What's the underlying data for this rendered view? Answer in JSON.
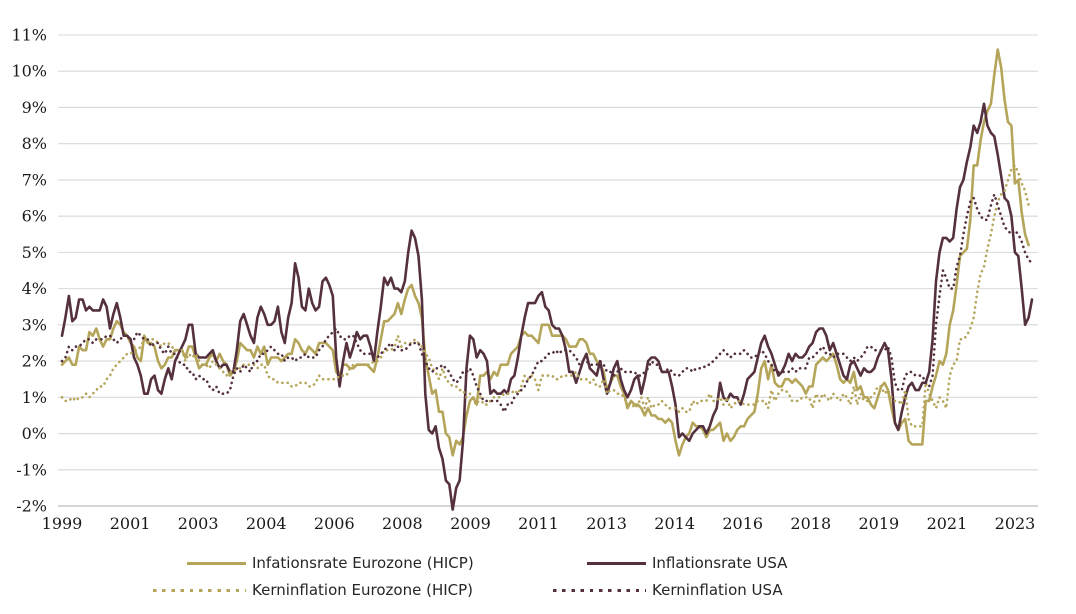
{
  "figure": {
    "background": "#ffffff",
    "gridline_color": "#d9d9d9",
    "axis_line_color": "#c9c9c9",
    "tick_text_color": "#1a1a1a",
    "legend_text_color": "#262626"
  },
  "chart_data": {
    "type": "line",
    "title": "",
    "xlabel": "",
    "ylabel": "",
    "frequency": "monthly",
    "grid": "horizontal",
    "legend_position": "bottom",
    "ylim": [
      -2,
      11
    ],
    "y_tick_values": [
      11,
      10,
      9,
      8,
      7,
      6,
      5,
      4,
      3,
      2,
      1,
      0,
      -1,
      -2
    ],
    "y_tick_labels": [
      "11%",
      "10%",
      "9%",
      "8%",
      "7%",
      "6%",
      "5%",
      "4%",
      "3%",
      "2%",
      "1%",
      "0%",
      "-1%",
      "-2%"
    ],
    "x_tick_labels": [
      "1999",
      "2001",
      "2003",
      "2004",
      "2006",
      "2008",
      "2009",
      "2011",
      "2013",
      "2014",
      "2016",
      "2018",
      "2019",
      "2021",
      "2023"
    ],
    "x_points_total": 284,
    "series": [
      {
        "name": "Infationsrate Eurozone (HICP)",
        "style": "solid",
        "color": "#b5a55a",
        "values": [
          1.9,
          2.0,
          2.1,
          1.9,
          1.9,
          2.4,
          2.3,
          2.3,
          2.8,
          2.7,
          2.9,
          2.6,
          2.4,
          2.6,
          2.6,
          2.9,
          3.1,
          3.0,
          2.8,
          2.7,
          2.5,
          2.4,
          2.1,
          2.0,
          2.7,
          2.5,
          2.5,
          2.4,
          2.0,
          1.8,
          1.9,
          2.1,
          2.1,
          2.3,
          2.3,
          2.3,
          2.1,
          2.4,
          2.4,
          2.1,
          1.8,
          1.9,
          1.9,
          2.1,
          2.2,
          2.0,
          2.2,
          2.0,
          1.9,
          1.6,
          1.7,
          2.0,
          2.5,
          2.4,
          2.3,
          2.3,
          2.1,
          2.4,
          2.2,
          2.4,
          1.9,
          2.1,
          2.1,
          2.1,
          2.0,
          2.1,
          2.2,
          2.2,
          2.6,
          2.5,
          2.3,
          2.2,
          2.4,
          2.3,
          2.2,
          2.5,
          2.5,
          2.5,
          2.4,
          2.3,
          1.7,
          1.6,
          1.9,
          1.9,
          1.8,
          1.8,
          1.9,
          1.9,
          1.9,
          1.9,
          1.8,
          1.7,
          2.1,
          2.6,
          3.1,
          3.1,
          3.2,
          3.3,
          3.6,
          3.3,
          3.7,
          4.0,
          4.1,
          3.8,
          3.6,
          3.2,
          2.1,
          1.6,
          1.1,
          1.2,
          0.6,
          0.6,
          0.0,
          -0.1,
          -0.6,
          -0.2,
          -0.3,
          -0.1,
          0.5,
          0.9,
          1.0,
          0.8,
          1.6,
          1.6,
          1.7,
          1.5,
          1.7,
          1.6,
          1.9,
          1.9,
          1.9,
          2.2,
          2.3,
          2.4,
          2.7,
          2.8,
          2.7,
          2.7,
          2.6,
          2.5,
          3.0,
          3.0,
          3.0,
          2.7,
          2.7,
          2.7,
          2.7,
          2.6,
          2.4,
          2.4,
          2.4,
          2.6,
          2.6,
          2.5,
          2.2,
          2.2,
          2.0,
          1.9,
          1.7,
          1.2,
          1.4,
          1.6,
          1.6,
          1.3,
          1.1,
          0.7,
          0.9,
          0.8,
          0.8,
          0.7,
          0.5,
          0.7,
          0.5,
          0.5,
          0.4,
          0.4,
          0.3,
          0.4,
          0.3,
          -0.2,
          -0.6,
          -0.3,
          -0.1,
          0.0,
          0.3,
          0.2,
          0.2,
          0.1,
          -0.1,
          0.1,
          0.1,
          0.2,
          0.3,
          -0.2,
          0.0,
          -0.2,
          -0.1,
          0.1,
          0.2,
          0.2,
          0.4,
          0.5,
          0.6,
          1.1,
          1.8,
          2.0,
          1.5,
          1.9,
          1.4,
          1.3,
          1.3,
          1.5,
          1.5,
          1.4,
          1.5,
          1.4,
          1.3,
          1.1,
          1.3,
          1.3,
          1.9,
          2.0,
          2.1,
          2.0,
          2.1,
          2.2,
          1.9,
          1.5,
          1.4,
          1.5,
          1.4,
          1.7,
          1.2,
          1.3,
          1.0,
          1.0,
          0.8,
          0.7,
          1.0,
          1.3,
          1.4,
          1.2,
          0.7,
          0.3,
          0.1,
          0.3,
          0.4,
          -0.2,
          -0.3,
          -0.3,
          -0.3,
          -0.3,
          0.9,
          0.9,
          1.3,
          1.6,
          2.0,
          1.9,
          2.2,
          3.0,
          3.4,
          4.1,
          4.9,
          5.0,
          5.1,
          5.9,
          7.4,
          7.4,
          8.1,
          8.6,
          8.9,
          9.1,
          9.9,
          10.6,
          10.1,
          9.2,
          8.6,
          8.5,
          6.9,
          7.0,
          6.1,
          5.5,
          5.2
        ]
      },
      {
        "name": "Inflationsrate USA",
        "style": "solid",
        "color": "#55303e",
        "values": [
          2.7,
          3.2,
          3.8,
          3.1,
          3.2,
          3.7,
          3.7,
          3.4,
          3.5,
          3.4,
          3.4,
          3.4,
          3.7,
          3.5,
          2.9,
          3.3,
          3.6,
          3.2,
          2.7,
          2.7,
          2.6,
          2.1,
          1.9,
          1.6,
          1.1,
          1.1,
          1.5,
          1.6,
          1.2,
          1.1,
          1.5,
          1.8,
          1.5,
          2.0,
          2.2,
          2.4,
          2.6,
          3.0,
          3.0,
          2.2,
          2.1,
          2.1,
          2.1,
          2.2,
          2.3,
          2.0,
          1.8,
          1.9,
          1.9,
          1.7,
          1.7,
          2.3,
          3.1,
          3.3,
          3.0,
          2.7,
          2.5,
          3.2,
          3.5,
          3.3,
          3.0,
          3.0,
          3.1,
          3.5,
          2.8,
          2.5,
          3.2,
          3.6,
          4.7,
          4.3,
          3.5,
          3.4,
          4.0,
          3.6,
          3.4,
          3.5,
          4.2,
          4.3,
          4.1,
          3.8,
          2.1,
          1.3,
          2.0,
          2.5,
          2.1,
          2.4,
          2.8,
          2.6,
          2.7,
          2.7,
          2.4,
          2.0,
          2.8,
          3.5,
          4.3,
          4.1,
          4.3,
          4.0,
          4.0,
          3.9,
          4.2,
          5.0,
          5.6,
          5.4,
          4.9,
          3.7,
          1.1,
          0.1,
          0.0,
          0.2,
          -0.4,
          -0.7,
          -1.3,
          -1.4,
          -2.1,
          -1.5,
          -1.3,
          -0.2,
          1.8,
          2.7,
          2.6,
          2.1,
          2.3,
          2.2,
          2.0,
          1.1,
          1.2,
          1.1,
          1.1,
          1.2,
          1.1,
          1.5,
          1.6,
          2.1,
          2.7,
          3.2,
          3.6,
          3.6,
          3.6,
          3.8,
          3.9,
          3.5,
          3.4,
          3.0,
          2.9,
          2.9,
          2.7,
          2.3,
          1.7,
          1.7,
          1.4,
          1.7,
          2.0,
          2.2,
          1.8,
          1.7,
          1.6,
          2.0,
          1.5,
          1.1,
          1.4,
          1.8,
          2.0,
          1.5,
          1.2,
          1.0,
          1.2,
          1.5,
          1.6,
          1.1,
          1.5,
          2.0,
          2.1,
          2.1,
          2.0,
          1.7,
          1.7,
          1.7,
          1.3,
          0.8,
          -0.1,
          0.0,
          -0.1,
          -0.2,
          0.0,
          0.1,
          0.2,
          0.2,
          0.0,
          0.2,
          0.5,
          0.7,
          1.4,
          1.0,
          0.9,
          1.1,
          1.0,
          1.0,
          0.8,
          1.1,
          1.5,
          1.6,
          1.7,
          2.1,
          2.5,
          2.7,
          2.4,
          2.2,
          1.9,
          1.6,
          1.7,
          1.9,
          2.2,
          2.0,
          2.2,
          2.1,
          2.1,
          2.2,
          2.4,
          2.5,
          2.8,
          2.9,
          2.9,
          2.7,
          2.3,
          2.5,
          2.2,
          1.9,
          1.6,
          1.5,
          1.9,
          2.0,
          1.8,
          1.6,
          1.8,
          1.7,
          1.7,
          1.8,
          2.1,
          2.3,
          2.5,
          2.3,
          1.5,
          0.3,
          0.1,
          0.6,
          1.0,
          1.3,
          1.4,
          1.2,
          1.2,
          1.4,
          1.4,
          1.7,
          2.6,
          4.2,
          5.0,
          5.4,
          5.4,
          5.3,
          5.4,
          6.2,
          6.8,
          7.0,
          7.5,
          7.9,
          8.5,
          8.3,
          8.6,
          9.1,
          8.5,
          8.3,
          8.2,
          7.7,
          7.1,
          6.5,
          6.4,
          6.0,
          5.0,
          4.9,
          4.0,
          3.0,
          3.2,
          3.7
        ]
      },
      {
        "name": "Kerninflation Eurozone (HICP)",
        "style": "dotted",
        "color": "#b5a55a",
        "values": [
          1.0,
          0.9,
          0.9,
          1.0,
          0.9,
          1.0,
          1.0,
          1.1,
          1.0,
          1.1,
          1.2,
          1.3,
          1.3,
          1.5,
          1.6,
          1.8,
          1.9,
          2.0,
          2.1,
          2.2,
          2.2,
          2.3,
          2.3,
          2.4,
          2.6,
          2.5,
          2.6,
          2.6,
          2.5,
          2.4,
          2.5,
          2.5,
          2.4,
          2.3,
          2.3,
          2.3,
          2.0,
          2.2,
          2.1,
          2.2,
          2.0,
          1.9,
          1.9,
          1.8,
          2.0,
          1.9,
          1.8,
          1.7,
          1.6,
          1.7,
          1.7,
          1.8,
          1.8,
          1.9,
          1.9,
          1.9,
          1.9,
          1.8,
          1.9,
          1.9,
          1.6,
          1.5,
          1.5,
          1.4,
          1.4,
          1.4,
          1.4,
          1.3,
          1.3,
          1.4,
          1.4,
          1.4,
          1.3,
          1.3,
          1.4,
          1.6,
          1.5,
          1.5,
          1.5,
          1.5,
          1.5,
          1.6,
          1.6,
          1.6,
          1.8,
          1.9,
          1.9,
          1.9,
          1.9,
          1.9,
          1.9,
          2.0,
          2.0,
          2.1,
          2.3,
          2.3,
          2.3,
          2.4,
          2.7,
          2.4,
          2.5,
          2.5,
          2.5,
          2.6,
          2.5,
          2.4,
          2.2,
          2.1,
          1.8,
          1.7,
          1.5,
          1.8,
          1.5,
          1.4,
          1.3,
          1.3,
          1.2,
          1.2,
          1.0,
          1.1,
          0.9,
          0.8,
          1.0,
          0.8,
          0.8,
          0.9,
          1.0,
          1.0,
          1.0,
          1.1,
          1.1,
          1.1,
          1.2,
          1.1,
          1.3,
          1.6,
          1.5,
          1.6,
          1.5,
          1.2,
          1.6,
          1.6,
          1.6,
          1.6,
          1.5,
          1.5,
          1.6,
          1.6,
          1.6,
          1.6,
          1.7,
          1.5,
          1.5,
          1.5,
          1.4,
          1.5,
          1.3,
          1.3,
          1.5,
          1.1,
          1.2,
          1.2,
          1.1,
          1.1,
          1.0,
          0.8,
          0.9,
          0.7,
          0.8,
          1.0,
          0.7,
          1.0,
          0.7,
          0.8,
          0.8,
          0.9,
          0.8,
          0.7,
          0.7,
          0.7,
          0.6,
          0.7,
          0.6,
          0.6,
          0.9,
          0.8,
          0.9,
          0.9,
          0.9,
          1.1,
          0.9,
          0.9,
          1.0,
          0.8,
          1.0,
          0.7,
          0.8,
          0.9,
          0.9,
          0.8,
          0.8,
          0.8,
          0.8,
          0.9,
          0.9,
          0.9,
          0.7,
          1.2,
          0.9,
          1.1,
          1.2,
          1.2,
          1.1,
          0.9,
          0.9,
          0.9,
          1.0,
          1.0,
          1.0,
          0.7,
          1.1,
          0.9,
          1.1,
          1.0,
          0.9,
          1.1,
          1.0,
          0.9,
          1.1,
          1.0,
          0.8,
          1.3,
          0.8,
          1.1,
          0.9,
          0.9,
          1.0,
          1.1,
          1.3,
          1.3,
          1.1,
          1.2,
          1.0,
          0.9,
          0.9,
          0.8,
          1.2,
          0.4,
          0.2,
          0.2,
          0.2,
          0.2,
          1.4,
          1.1,
          0.9,
          0.7,
          1.0,
          0.9,
          0.7,
          1.6,
          1.9,
          2.0,
          2.6,
          2.6,
          2.7,
          2.9,
          3.2,
          3.9,
          4.4,
          4.6,
          5.1,
          5.5,
          6.0,
          6.4,
          6.6,
          6.7,
          7.0,
          7.3,
          7.4,
          7.2,
          6.9,
          6.7,
          6.3
        ]
      },
      {
        "name": "Kerninflation USA",
        "style": "dotted",
        "color": "#55303e",
        "values": [
          2.0,
          2.1,
          2.4,
          2.3,
          2.4,
          2.4,
          2.5,
          2.6,
          2.6,
          2.5,
          2.6,
          2.6,
          2.6,
          2.7,
          2.7,
          2.6,
          2.5,
          2.6,
          2.7,
          2.7,
          2.6,
          2.6,
          2.8,
          2.7,
          2.6,
          2.6,
          2.4,
          2.5,
          2.5,
          2.3,
          2.2,
          2.4,
          2.2,
          2.2,
          2.0,
          1.9,
          1.9,
          1.7,
          1.7,
          1.5,
          1.6,
          1.5,
          1.5,
          1.3,
          1.2,
          1.3,
          1.1,
          1.1,
          1.1,
          1.2,
          1.6,
          1.8,
          1.7,
          1.9,
          1.8,
          1.7,
          2.0,
          2.0,
          2.2,
          2.2,
          2.3,
          2.4,
          2.3,
          2.2,
          2.2,
          2.0,
          2.1,
          2.1,
          2.0,
          2.1,
          2.1,
          2.2,
          2.1,
          2.1,
          2.1,
          2.3,
          2.4,
          2.6,
          2.7,
          2.8,
          2.9,
          2.7,
          2.6,
          2.6,
          2.7,
          2.7,
          2.5,
          2.3,
          2.2,
          2.2,
          2.2,
          2.1,
          2.1,
          2.2,
          2.3,
          2.4,
          2.5,
          2.3,
          2.4,
          2.3,
          2.3,
          2.4,
          2.5,
          2.5,
          2.5,
          2.2,
          2.0,
          1.8,
          1.7,
          1.8,
          1.8,
          1.9,
          1.8,
          1.7,
          1.5,
          1.4,
          1.5,
          1.7,
          1.7,
          1.8,
          1.6,
          1.3,
          1.1,
          0.9,
          0.9,
          0.9,
          0.9,
          0.9,
          0.8,
          0.6,
          0.8,
          0.8,
          1.0,
          1.1,
          1.2,
          1.3,
          1.5,
          1.6,
          1.8,
          2.0,
          2.0,
          2.1,
          2.2,
          2.2,
          2.3,
          2.2,
          2.3,
          2.3,
          2.3,
          2.2,
          2.1,
          1.9,
          2.0,
          2.0,
          1.9,
          1.9,
          1.9,
          2.0,
          1.9,
          1.7,
          1.7,
          1.6,
          1.7,
          1.8,
          1.7,
          1.7,
          1.7,
          1.7,
          1.6,
          1.6,
          1.7,
          1.8,
          2.0,
          1.9,
          1.9,
          1.7,
          1.7,
          1.8,
          1.7,
          1.6,
          1.6,
          1.7,
          1.8,
          1.8,
          1.7,
          1.8,
          1.8,
          1.8,
          1.9,
          1.9,
          2.0,
          2.1,
          2.2,
          2.3,
          2.2,
          2.1,
          2.2,
          2.2,
          2.2,
          2.3,
          2.2,
          2.1,
          2.1,
          2.2,
          2.3,
          2.2,
          2.0,
          1.9,
          1.7,
          1.7,
          1.7,
          1.7,
          1.7,
          1.8,
          1.7,
          1.8,
          1.8,
          1.8,
          2.1,
          2.1,
          2.2,
          2.3,
          2.4,
          2.2,
          2.2,
          2.1,
          2.2,
          2.2,
          2.2,
          2.1,
          2.0,
          2.1,
          2.0,
          2.1,
          2.2,
          2.4,
          2.4,
          2.3,
          2.3,
          2.3,
          2.3,
          2.4,
          2.1,
          1.4,
          1.2,
          1.2,
          1.6,
          1.7,
          1.7,
          1.6,
          1.6,
          1.6,
          1.4,
          1.3,
          1.6,
          3.0,
          3.8,
          4.5,
          4.3,
          4.0,
          4.0,
          4.6,
          4.9,
          5.5,
          6.0,
          6.4,
          6.5,
          6.2,
          6.0,
          5.9,
          5.9,
          6.3,
          6.6,
          6.3,
          6.0,
          5.7,
          5.6,
          5.5,
          5.6,
          5.5,
          5.3,
          5.0,
          4.8,
          4.7
        ]
      }
    ]
  }
}
